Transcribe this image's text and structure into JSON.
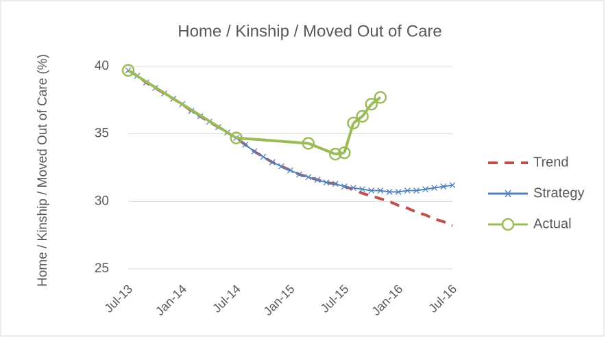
{
  "chart_data": {
    "type": "line",
    "title": "Home / Kinship / Moved Out of Care",
    "y_label": "Home / Kinship / Moved Out of Care (%)",
    "categories": [
      "Jul-13",
      null,
      null,
      null,
      null,
      null,
      "Jan-14",
      null,
      null,
      null,
      null,
      null,
      "Jul-14",
      null,
      null,
      null,
      null,
      null,
      "Jan-15",
      null,
      null,
      null,
      null,
      null,
      "Jul-15",
      null,
      null,
      null,
      null,
      null,
      "Jan-16",
      null,
      null,
      null,
      null,
      null,
      "Jul-16"
    ],
    "series": [
      {
        "name": "Trend",
        "color": "#c0504d",
        "style": "dashed",
        "values": [
          39.7,
          39.3,
          38.8,
          38.4,
          38.0,
          37.6,
          37.2,
          36.7,
          36.3,
          35.9,
          35.5,
          35.1,
          34.7,
          34.2,
          33.7,
          33.3,
          32.9,
          32.6,
          32.3,
          32.0,
          31.8,
          31.6,
          31.4,
          31.3,
          31.1,
          30.9,
          30.6,
          30.4,
          30.2,
          30.0,
          29.7,
          29.5,
          29.2,
          29.0,
          28.7,
          28.5,
          28.2
        ]
      },
      {
        "name": "Strategy",
        "color": "#4f81bd",
        "marker": "x",
        "values": [
          39.7,
          39.3,
          38.8,
          38.4,
          38.0,
          37.6,
          37.2,
          36.7,
          36.3,
          35.9,
          35.5,
          35.1,
          34.7,
          34.2,
          33.7,
          33.3,
          32.9,
          32.6,
          32.3,
          32.0,
          31.8,
          31.6,
          31.4,
          31.3,
          31.1,
          31.0,
          30.9,
          30.8,
          30.8,
          30.7,
          30.7,
          30.8,
          30.8,
          30.9,
          31.0,
          31.1,
          31.2
        ]
      },
      {
        "name": "Actual",
        "color": "#9bbb59",
        "marker": "circle",
        "values": [
          39.7,
          null,
          null,
          null,
          null,
          null,
          null,
          null,
          null,
          null,
          null,
          null,
          34.7,
          null,
          null,
          null,
          null,
          null,
          null,
          null,
          34.3,
          null,
          null,
          33.5,
          33.6,
          35.8,
          36.3,
          37.2,
          37.7,
          null,
          null,
          null,
          null,
          null,
          null,
          null,
          null
        ]
      }
    ],
    "ylim": [
      25,
      40
    ],
    "yticks": [
      25,
      30,
      35,
      40
    ],
    "grid": true,
    "legend": "right"
  }
}
